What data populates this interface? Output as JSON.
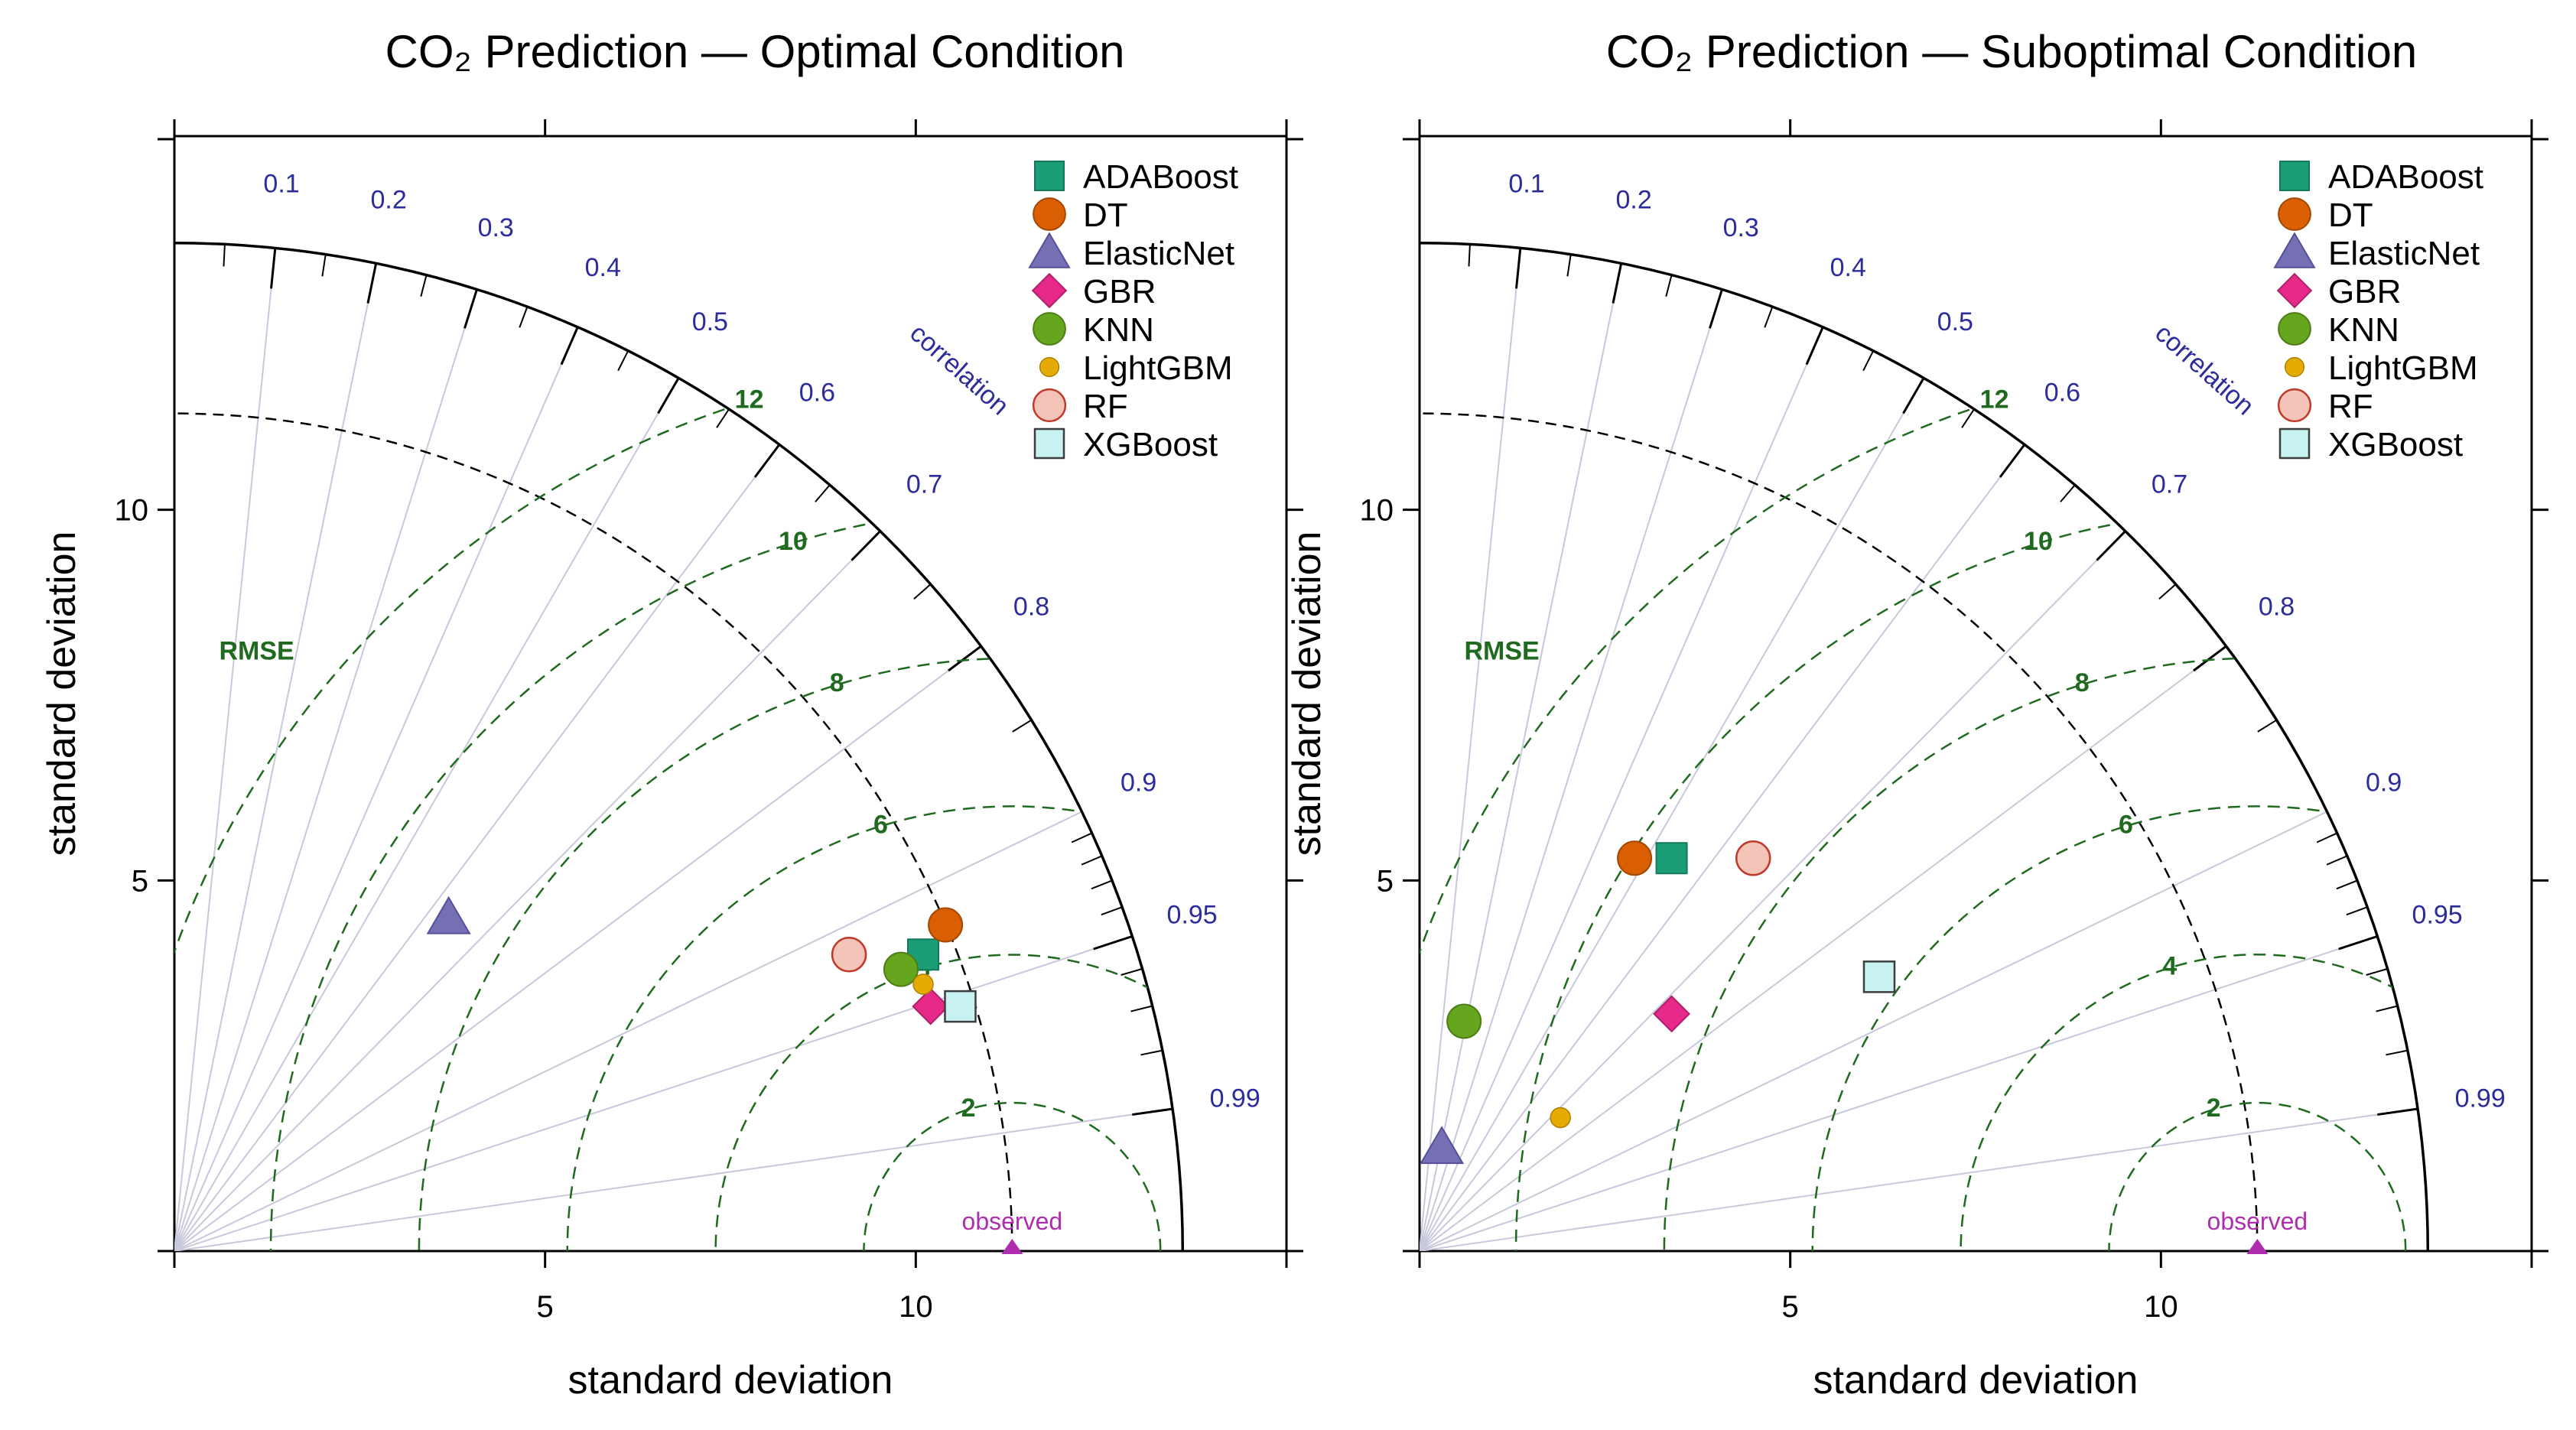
{
  "chart_data": [
    {
      "type": "scatter",
      "subtype": "taylor-diagram",
      "title": "CO₂ Prediction — Optimal Condition",
      "xlabel": "standard deviation",
      "ylabel": "standard deviation",
      "xlim": [
        0,
        15
      ],
      "ylim": [
        0,
        15
      ],
      "x_ticks": [
        "5",
        "10"
      ],
      "y_ticks": [
        "5",
        "10"
      ],
      "sd_arcs": [
        11.3,
        13.6
      ],
      "correlation_label": "correlation",
      "correlation_ticks": [
        "0.1",
        "0.2",
        "0.3",
        "0.4",
        "0.5",
        "0.6",
        "0.7",
        "0.8",
        "0.9",
        "0.95",
        "0.99"
      ],
      "rmse_label": "RMSE",
      "rmse_contours": [
        2,
        4,
        6,
        8,
        10,
        12
      ],
      "observed": {
        "label": "observed",
        "sd": 11.3
      },
      "legend": "top-right",
      "series": [
        {
          "name": "ADABoost",
          "x": 10.1,
          "y": 4.0,
          "color": "#1b9e77",
          "shape": "square"
        },
        {
          "name": "DT",
          "x": 10.4,
          "y": 4.4,
          "color": "#d95f02",
          "shape": "circle"
        },
        {
          "name": "ElasticNet",
          "x": 3.7,
          "y": 4.5,
          "color": "#7570b3",
          "shape": "triangle"
        },
        {
          "name": "GBR",
          "x": 10.2,
          "y": 3.3,
          "color": "#e7298a",
          "shape": "diamond"
        },
        {
          "name": "KNN",
          "x": 9.8,
          "y": 3.8,
          "color": "#66a61e",
          "shape": "circle"
        },
        {
          "name": "LightGBM",
          "x": 10.1,
          "y": 3.6,
          "color": "#e6ab02",
          "shape": "small-circle"
        },
        {
          "name": "RF",
          "x": 9.1,
          "y": 4.0,
          "color": "#f4c4b8",
          "shape": "open-circle"
        },
        {
          "name": "XGBoost",
          "x": 10.6,
          "y": 3.3,
          "color": "#c8f2f2",
          "shape": "open-square"
        }
      ]
    },
    {
      "type": "scatter",
      "subtype": "taylor-diagram",
      "title": "CO₂ Prediction — Suboptimal Condition",
      "xlabel": "standard deviation",
      "ylabel": "standard deviation",
      "xlim": [
        0,
        15
      ],
      "ylim": [
        0,
        15
      ],
      "x_ticks": [
        "5",
        "10"
      ],
      "y_ticks": [
        "5",
        "10"
      ],
      "sd_arcs": [
        11.3,
        13.6
      ],
      "correlation_label": "correlation",
      "correlation_ticks": [
        "0.1",
        "0.2",
        "0.3",
        "0.4",
        "0.5",
        "0.6",
        "0.7",
        "0.8",
        "0.9",
        "0.95",
        "0.99"
      ],
      "rmse_label": "RMSE",
      "rmse_contours": [
        2,
        4,
        6,
        8,
        10,
        12
      ],
      "observed": {
        "label": "observed",
        "sd": 11.3
      },
      "legend": "top-right",
      "series": [
        {
          "name": "ADABoost",
          "x": 3.4,
          "y": 5.3,
          "color": "#1b9e77",
          "shape": "square"
        },
        {
          "name": "DT",
          "x": 2.9,
          "y": 5.3,
          "color": "#d95f02",
          "shape": "circle"
        },
        {
          "name": "ElasticNet",
          "x": 0.3,
          "y": 1.4,
          "color": "#7570b3",
          "shape": "triangle"
        },
        {
          "name": "GBR",
          "x": 3.4,
          "y": 3.2,
          "color": "#e7298a",
          "shape": "diamond"
        },
        {
          "name": "KNN",
          "x": 0.6,
          "y": 3.1,
          "color": "#66a61e",
          "shape": "circle"
        },
        {
          "name": "LightGBM",
          "x": 1.9,
          "y": 1.8,
          "color": "#e6ab02",
          "shape": "small-circle"
        },
        {
          "name": "RF",
          "x": 4.5,
          "y": 5.3,
          "color": "#f4c4b8",
          "shape": "open-circle"
        },
        {
          "name": "XGBoost",
          "x": 6.2,
          "y": 3.7,
          "color": "#c8f2f2",
          "shape": "open-square"
        }
      ]
    }
  ]
}
